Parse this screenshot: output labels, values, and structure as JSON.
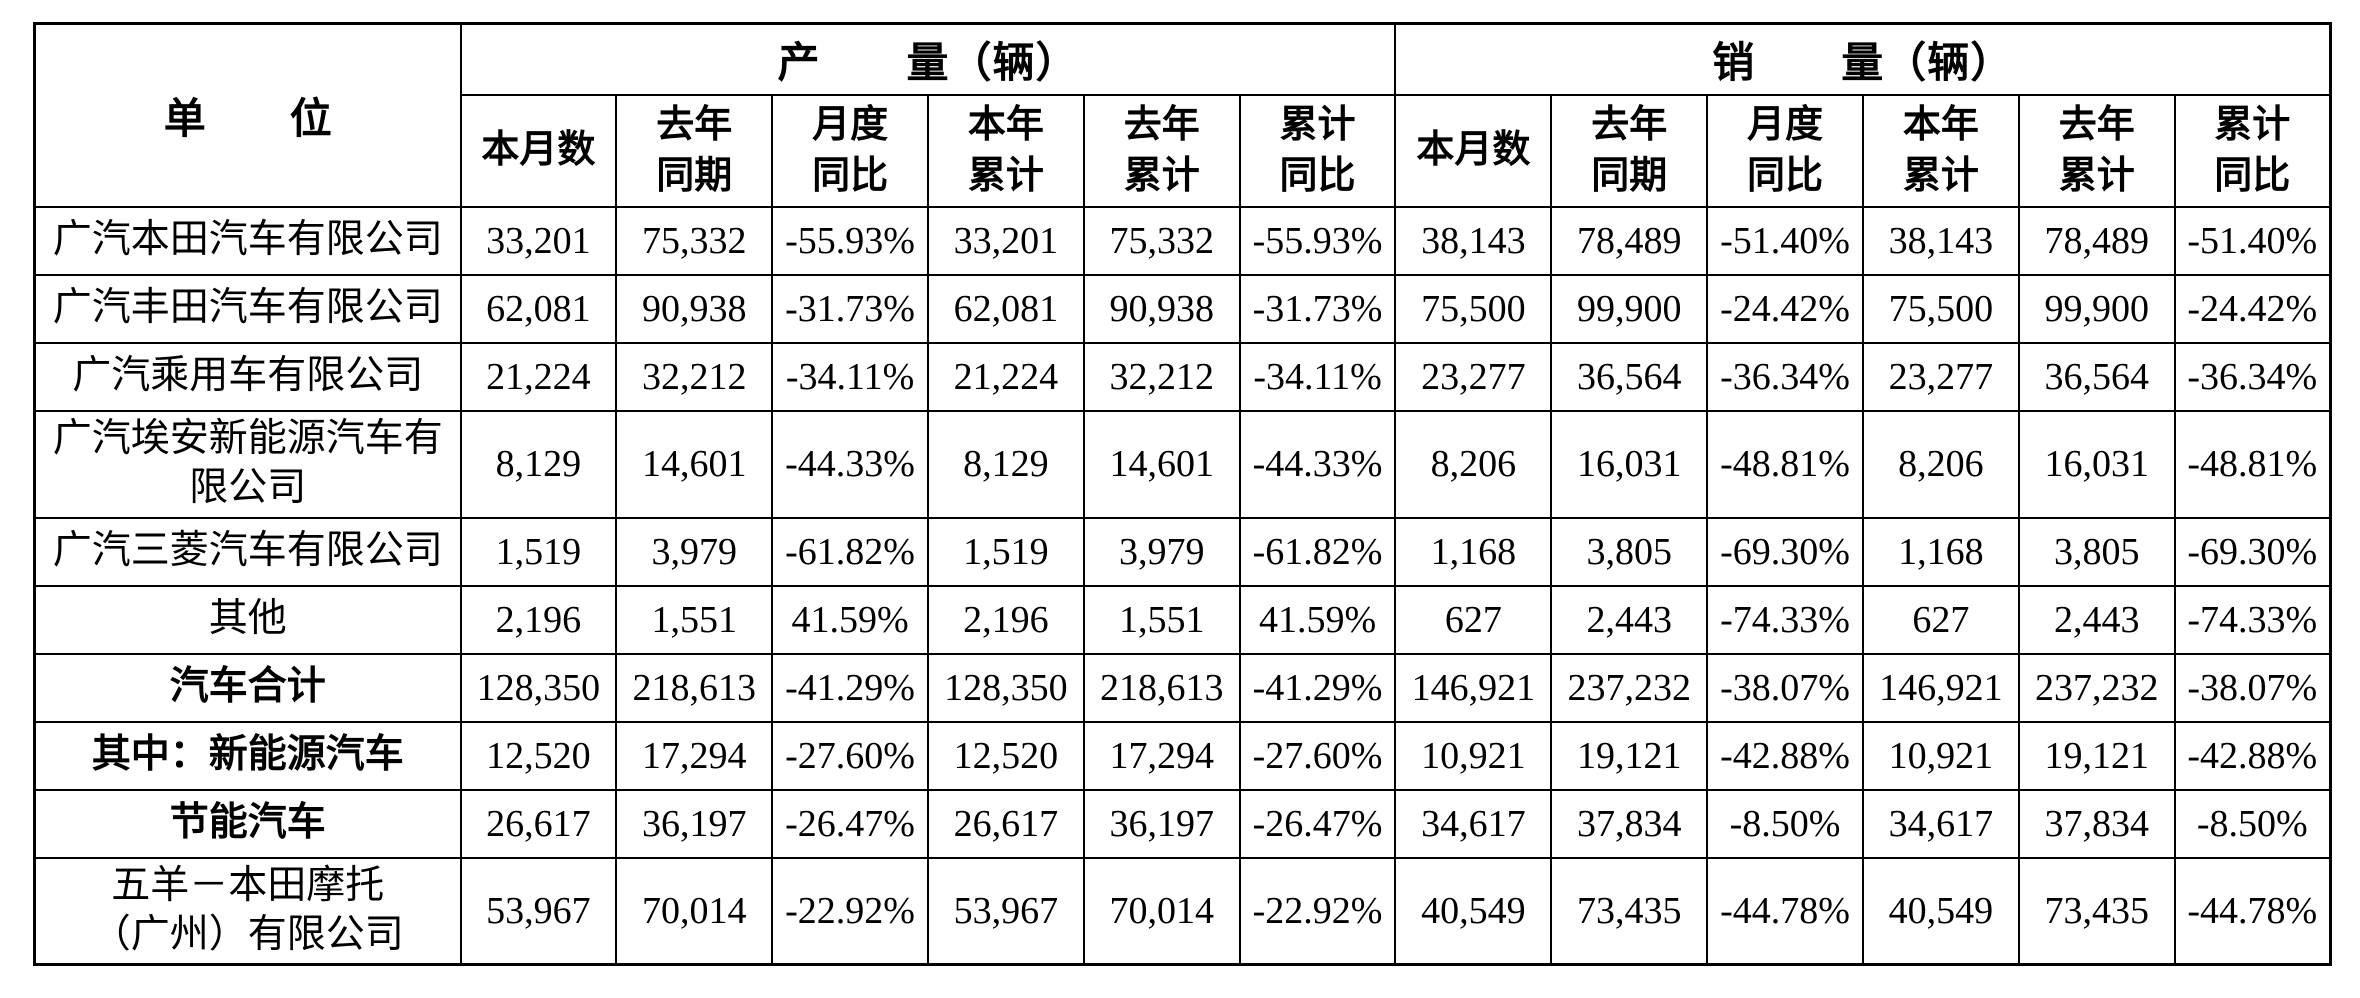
{
  "page": {
    "background": "#ffffff",
    "text_color": "#000000",
    "border_color": "#000000"
  },
  "table": {
    "unit_header": "单　　位",
    "production_header": "产　　量（辆）",
    "sales_header": "销　　量（辆）",
    "sub_headers": [
      "本月数",
      "去年\n同期",
      "月度\n同比",
      "本年\n累计",
      "去年\n累计",
      "累计\n同比"
    ],
    "rows": [
      {
        "name": "广汽本田汽车有限公司",
        "bold": false,
        "tall": false,
        "cells": [
          "33,201",
          "75,332",
          "-55.93%",
          "33,201",
          "75,332",
          "-55.93%",
          "38,143",
          "78,489",
          "-51.40%",
          "38,143",
          "78,489",
          "-51.40%"
        ]
      },
      {
        "name": "广汽丰田汽车有限公司",
        "bold": false,
        "tall": false,
        "cells": [
          "62,081",
          "90,938",
          "-31.73%",
          "62,081",
          "90,938",
          "-31.73%",
          "75,500",
          "99,900",
          "-24.42%",
          "75,500",
          "99,900",
          "-24.42%"
        ]
      },
      {
        "name": "广汽乘用车有限公司",
        "bold": false,
        "tall": false,
        "cells": [
          "21,224",
          "32,212",
          "-34.11%",
          "21,224",
          "32,212",
          "-34.11%",
          "23,277",
          "36,564",
          "-36.34%",
          "23,277",
          "36,564",
          "-36.34%"
        ]
      },
      {
        "name": "广汽埃安新能源汽车有\n限公司",
        "bold": false,
        "tall": true,
        "cells": [
          "8,129",
          "14,601",
          "-44.33%",
          "8,129",
          "14,601",
          "-44.33%",
          "8,206",
          "16,031",
          "-48.81%",
          "8,206",
          "16,031",
          "-48.81%"
        ]
      },
      {
        "name": "广汽三菱汽车有限公司",
        "bold": false,
        "tall": false,
        "cells": [
          "1,519",
          "3,979",
          "-61.82%",
          "1,519",
          "3,979",
          "-61.82%",
          "1,168",
          "3,805",
          "-69.30%",
          "1,168",
          "3,805",
          "-69.30%"
        ]
      },
      {
        "name": "其他",
        "bold": false,
        "tall": false,
        "cells": [
          "2,196",
          "1,551",
          "41.59%",
          "2,196",
          "1,551",
          "41.59%",
          "627",
          "2,443",
          "-74.33%",
          "627",
          "2,443",
          "-74.33%"
        ]
      },
      {
        "name": "汽车合计",
        "bold": true,
        "tall": false,
        "cells": [
          "128,350",
          "218,613",
          "-41.29%",
          "128,350",
          "218,613",
          "-41.29%",
          "146,921",
          "237,232",
          "-38.07%",
          "146,921",
          "237,232",
          "-38.07%"
        ]
      },
      {
        "name": "其中：新能源汽车",
        "bold": true,
        "tall": false,
        "cells": [
          "12,520",
          "17,294",
          "-27.60%",
          "12,520",
          "17,294",
          "-27.60%",
          "10,921",
          "19,121",
          "-42.88%",
          "10,921",
          "19,121",
          "-42.88%"
        ]
      },
      {
        "name": "节能汽车",
        "bold": true,
        "tall": false,
        "cells": [
          "26,617",
          "36,197",
          "-26.47%",
          "26,617",
          "36,197",
          "-26.47%",
          "34,617",
          "37,834",
          "-8.50%",
          "34,617",
          "37,834",
          "-8.50%"
        ]
      },
      {
        "name": "五羊－本田摩托\n（广州）有限公司",
        "bold": false,
        "tall": true,
        "cells": [
          "53,967",
          "70,014",
          "-22.92%",
          "53,967",
          "70,014",
          "-22.92%",
          "40,549",
          "73,435",
          "-44.78%",
          "40,549",
          "73,435",
          "-44.78%"
        ]
      }
    ]
  }
}
